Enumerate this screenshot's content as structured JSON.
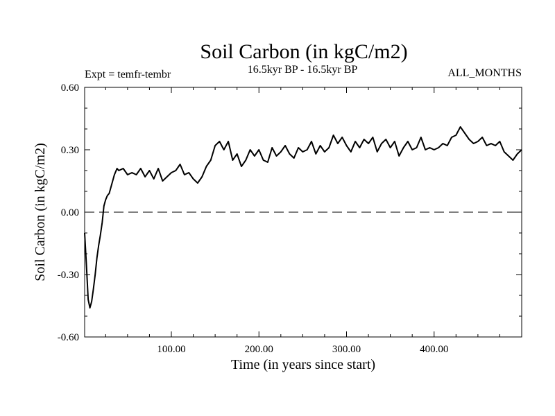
{
  "chart_data": {
    "type": "line",
    "title": "Soil Carbon (in kgC/m2)",
    "subtitle_left": "Expt = temfr-tembr",
    "subtitle_center": "16.5kyr BP - 16.5kyr BP",
    "subtitle_right": "ALL_MONTHS",
    "xlabel": "Time (in years since start)",
    "ylabel": "Soil Carbon (in kgC/m2)",
    "xlim": [
      1,
      500
    ],
    "ylim": [
      -0.6,
      0.6
    ],
    "xticks": [
      100,
      200,
      300,
      400
    ],
    "xtick_labels": [
      "100.00",
      "200.00",
      "300.00",
      "400.00"
    ],
    "yticks": [
      -0.6,
      -0.3,
      0.0,
      0.3,
      0.6
    ],
    "ytick_labels": [
      "-0.60",
      "-0.30",
      "0.00",
      "0.30",
      "0.60"
    ],
    "zero_line": 0.0,
    "series": [
      {
        "name": "Soil Carbon",
        "color": "#000000",
        "x": [
          1,
          3,
          5,
          7,
          9,
          11,
          13,
          15,
          17,
          19,
          21,
          23,
          25,
          27,
          29,
          31,
          33,
          35,
          38,
          40,
          45,
          50,
          55,
          60,
          65,
          70,
          75,
          80,
          85,
          90,
          95,
          100,
          105,
          110,
          115,
          120,
          125,
          130,
          135,
          140,
          145,
          150,
          155,
          160,
          165,
          170,
          175,
          180,
          185,
          190,
          195,
          200,
          205,
          210,
          215,
          220,
          225,
          230,
          235,
          240,
          245,
          250,
          255,
          260,
          265,
          270,
          275,
          280,
          285,
          290,
          295,
          300,
          305,
          310,
          315,
          320,
          325,
          330,
          335,
          340,
          345,
          350,
          355,
          360,
          365,
          370,
          375,
          380,
          385,
          390,
          395,
          400,
          405,
          410,
          415,
          420,
          425,
          430,
          435,
          440,
          445,
          450,
          455,
          460,
          465,
          470,
          475,
          480,
          485,
          490,
          495,
          500
        ],
        "values": [
          -0.1,
          -0.25,
          -0.42,
          -0.46,
          -0.43,
          -0.37,
          -0.3,
          -0.22,
          -0.16,
          -0.11,
          -0.05,
          0.03,
          0.06,
          0.08,
          0.09,
          0.12,
          0.15,
          0.18,
          0.21,
          0.2,
          0.21,
          0.18,
          0.19,
          0.18,
          0.21,
          0.17,
          0.2,
          0.16,
          0.21,
          0.15,
          0.17,
          0.19,
          0.2,
          0.23,
          0.18,
          0.19,
          0.16,
          0.14,
          0.17,
          0.22,
          0.25,
          0.32,
          0.34,
          0.3,
          0.34,
          0.25,
          0.28,
          0.22,
          0.25,
          0.3,
          0.27,
          0.3,
          0.25,
          0.24,
          0.31,
          0.27,
          0.29,
          0.32,
          0.28,
          0.26,
          0.31,
          0.29,
          0.3,
          0.34,
          0.28,
          0.32,
          0.29,
          0.31,
          0.37,
          0.33,
          0.36,
          0.32,
          0.29,
          0.34,
          0.31,
          0.35,
          0.33,
          0.36,
          0.29,
          0.33,
          0.35,
          0.31,
          0.34,
          0.27,
          0.31,
          0.34,
          0.3,
          0.31,
          0.36,
          0.3,
          0.31,
          0.3,
          0.31,
          0.33,
          0.32,
          0.36,
          0.37,
          0.41,
          0.38,
          0.35,
          0.33,
          0.34,
          0.36,
          0.32,
          0.33,
          0.32,
          0.34,
          0.29,
          0.27,
          0.25,
          0.28,
          0.3
        ]
      }
    ]
  }
}
